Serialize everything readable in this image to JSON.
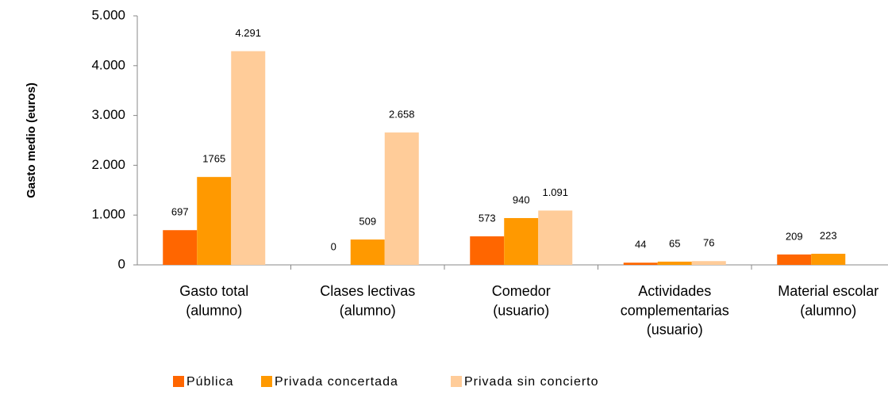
{
  "chart_data": {
    "type": "bar",
    "y_label": "Gasto medio (euros)",
    "categories": [
      "Gasto total\n(alumno)",
      "Clases lectivas\n(alumno)",
      "Comedor\n(usuario)",
      "Actividades\ncomplementarias\n(usuario)",
      "Material escolar\n(alumno)"
    ],
    "series": [
      {
        "name": "Pública",
        "color": "#ff6600",
        "values": [
          697,
          0,
          573,
          44,
          209
        ]
      },
      {
        "name": "Privada concertada",
        "color": "#ff9900",
        "values": [
          1765,
          509,
          940,
          65,
          223
        ]
      },
      {
        "name": "Privada sin concierto",
        "color": "#ffcc99",
        "values": [
          4291,
          2658,
          1091,
          76,
          null
        ],
        "value_labels": [
          "4.291",
          "2.658",
          "1.091",
          "76",
          null
        ]
      }
    ],
    "ylim": [
      0,
      5000
    ],
    "yticks": [
      0,
      {
        "value": 1000,
        "label": "1.000"
      },
      {
        "value": 2000,
        "label": "2.000"
      },
      {
        "value": 3000,
        "label": "3.000"
      },
      {
        "value": 4000,
        "label": "4.000"
      },
      {
        "value": 5000,
        "label": "5.000"
      }
    ],
    "legend": "bottom",
    "grid": false
  }
}
